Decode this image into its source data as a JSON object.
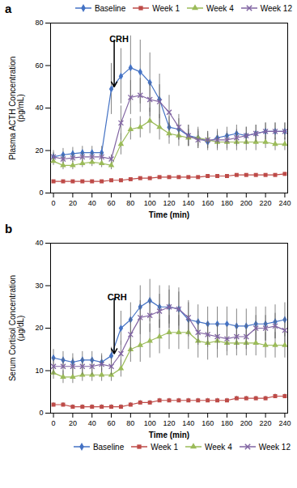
{
  "chart_data": [
    {
      "type": "line",
      "title": "a",
      "xlabel": "Time (min)",
      "ylabel": "Plasma ACTH Concentration\n(pg/mL)",
      "x": [
        0,
        10,
        20,
        30,
        40,
        50,
        60,
        70,
        80,
        90,
        100,
        110,
        120,
        130,
        140,
        150,
        160,
        170,
        180,
        190,
        200,
        210,
        220,
        230,
        240
      ],
      "xlim": [
        -3,
        243
      ],
      "xticks": [
        0,
        20,
        40,
        60,
        80,
        100,
        120,
        140,
        160,
        180,
        200,
        220,
        240
      ],
      "ylim": [
        0,
        80
      ],
      "yticks": [
        0,
        20,
        40,
        60,
        80
      ],
      "grid": false,
      "legend": "upper right",
      "series": [
        {
          "name": "Baseline",
          "color": "#4472C4",
          "marker": "diamond",
          "values": [
            17,
            18,
            18.5,
            19,
            19,
            19,
            49,
            55,
            59,
            57,
            52,
            44,
            31,
            30,
            27,
            26,
            24,
            26,
            27,
            28,
            27,
            28,
            29,
            29,
            29
          ],
          "errors": [
            3,
            3,
            3,
            3,
            3,
            3,
            12,
            13,
            15,
            15,
            14,
            12,
            5,
            5,
            5,
            5,
            4,
            4,
            4,
            4,
            4,
            4,
            4,
            4,
            4
          ]
        },
        {
          "name": "Week 1",
          "color": "#BE4B48",
          "marker": "square",
          "values": [
            5.5,
            5.5,
            5.5,
            5.5,
            5.5,
            5.5,
            6,
            6,
            6.5,
            7,
            7,
            7.5,
            7.5,
            7.5,
            7.5,
            7.5,
            8,
            8,
            8,
            8.5,
            8.5,
            8.5,
            8.5,
            8.5,
            9
          ],
          "errors": [
            0.5,
            0.5,
            0.5,
            0.5,
            0.5,
            0.5,
            0.5,
            0.5,
            0.5,
            0.5,
            0.5,
            0.5,
            0.5,
            0.5,
            0.5,
            0.5,
            0.5,
            0.5,
            0.5,
            0.5,
            0.5,
            0.5,
            0.5,
            0.5,
            0.5
          ]
        },
        {
          "name": "Week 4",
          "color": "#9BBB59",
          "marker": "triangle",
          "values": [
            15,
            13,
            13,
            14,
            14.5,
            14,
            13,
            23,
            30,
            31,
            34,
            31,
            28,
            27,
            26,
            26,
            25,
            24,
            24,
            24,
            24,
            24,
            24,
            23,
            23
          ],
          "errors": [
            2,
            2,
            2,
            2,
            2,
            2,
            2,
            5,
            5,
            5,
            6,
            6,
            5,
            5,
            4,
            4,
            4,
            4,
            4,
            4,
            4,
            4,
            3,
            3,
            3
          ]
        },
        {
          "name": "Week 12",
          "color": "#8064A2",
          "marker": "x",
          "values": [
            17,
            16,
            16.5,
            17,
            17,
            17,
            16,
            33,
            45,
            46,
            44,
            43,
            38,
            31,
            27,
            25,
            25,
            25,
            25,
            26,
            27,
            28,
            29,
            29,
            29
          ],
          "errors": [
            2,
            2,
            2,
            2,
            2,
            2,
            2,
            8,
            8,
            8,
            8,
            8,
            8,
            6,
            5,
            4,
            4,
            4,
            4,
            4,
            4,
            4,
            4,
            4,
            4
          ]
        }
      ],
      "annotations": [
        {
          "text": "CRH",
          "x": 58,
          "y": 74
        }
      ],
      "arrow": {
        "x": 63,
        "y_top": 72,
        "y_bot": 50
      }
    },
    {
      "type": "line",
      "title": "b",
      "xlabel": "Time (min)",
      "ylabel": "Serum Cortisol Concentration\n(μg/dL)",
      "x": [
        0,
        10,
        20,
        30,
        40,
        50,
        60,
        70,
        80,
        90,
        100,
        110,
        120,
        130,
        140,
        150,
        160,
        170,
        180,
        190,
        200,
        210,
        220,
        230,
        240
      ],
      "xlim": [
        -3,
        243
      ],
      "xticks": [
        0,
        20,
        40,
        60,
        80,
        100,
        120,
        140,
        160,
        180,
        200,
        220,
        240
      ],
      "ylim": [
        0,
        40
      ],
      "yticks": [
        0,
        10,
        20,
        30,
        40
      ],
      "grid": false,
      "legend": "lower right",
      "series": [
        {
          "name": "Baseline",
          "color": "#4472C4",
          "marker": "diamond",
          "values": [
            13,
            12.5,
            12,
            12.5,
            12.5,
            12,
            13.5,
            20,
            22,
            25,
            26.5,
            25,
            25,
            24.5,
            22,
            21.5,
            21,
            21,
            21,
            20.5,
            20.5,
            21,
            21,
            21.5,
            22
          ],
          "errors": [
            2,
            2,
            2,
            2,
            2,
            2,
            2,
            4,
            4,
            5,
            5,
            5,
            5,
            5,
            4,
            4,
            4,
            4,
            4,
            4,
            4,
            4,
            4,
            4,
            4
          ]
        },
        {
          "name": "Week 1",
          "color": "#BE4B48",
          "marker": "square",
          "values": [
            2,
            2,
            1.5,
            1.5,
            1.5,
            1.5,
            1.5,
            1.5,
            2,
            2.5,
            2.5,
            3,
            3,
            3,
            3,
            3,
            3,
            3,
            3,
            3.5,
            3.5,
            3.5,
            3.5,
            4,
            4
          ],
          "errors": [
            0.5,
            0.5,
            0.5,
            0.5,
            0.5,
            0.5,
            0.5,
            0.5,
            0.5,
            0.5,
            0.5,
            0.5,
            0.5,
            0.5,
            0.5,
            0.5,
            0.5,
            0.5,
            0.5,
            0.5,
            0.5,
            0.5,
            0.5,
            0.5,
            0.5
          ]
        },
        {
          "name": "Week 4",
          "color": "#9BBB59",
          "marker": "triangle",
          "values": [
            9.5,
            8.5,
            8.5,
            9,
            9,
            9,
            9,
            10.5,
            15,
            16,
            17,
            18,
            19,
            19,
            19,
            17,
            16.5,
            17,
            16.5,
            16.5,
            16.5,
            16.5,
            16,
            16,
            16
          ],
          "errors": [
            1.5,
            1.5,
            1.5,
            1.5,
            1.5,
            1.5,
            1.5,
            2,
            3,
            4,
            4,
            4,
            4,
            4,
            4,
            4,
            4,
            4,
            3,
            3,
            3,
            3,
            3,
            3,
            3
          ]
        },
        {
          "name": "Week 12",
          "color": "#8064A2",
          "marker": "x",
          "values": [
            11,
            11,
            11,
            11,
            11,
            11.5,
            11,
            14,
            18.5,
            22.5,
            23,
            24,
            25,
            24.5,
            22.5,
            19,
            18.5,
            18,
            17.5,
            18,
            18,
            20,
            20,
            20.5,
            19.5
          ],
          "errors": [
            2,
            2,
            2,
            2,
            2,
            2,
            2,
            3,
            4,
            4,
            4,
            4,
            4,
            4,
            4,
            3,
            3,
            3,
            3,
            3,
            3,
            3,
            3,
            3,
            3
          ]
        }
      ],
      "annotations": [
        {
          "text": "CRH",
          "x": 56,
          "y": 28
        }
      ],
      "arrow": {
        "x": 63,
        "y_top": 27,
        "y_bot": 14
      }
    }
  ]
}
